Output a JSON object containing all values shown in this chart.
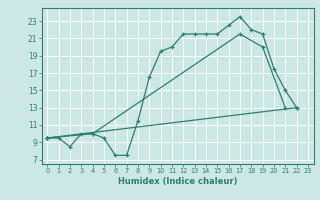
{
  "xlabel": "Humidex (Indice chaleur)",
  "bg_color": "#cce8e5",
  "grid_color": "#ffffff",
  "line_color": "#2e7d70",
  "xlim": [
    -0.5,
    23.5
  ],
  "ylim": [
    6.5,
    24.5
  ],
  "xticks": [
    0,
    1,
    2,
    3,
    4,
    5,
    6,
    7,
    8,
    9,
    10,
    11,
    12,
    13,
    14,
    15,
    16,
    17,
    18,
    19,
    20,
    21,
    22,
    23
  ],
  "yticks": [
    7,
    9,
    11,
    13,
    15,
    17,
    19,
    21,
    23
  ],
  "line1_x": [
    0,
    1,
    2,
    3,
    4,
    5,
    6,
    7,
    8,
    9,
    10,
    11,
    12,
    13,
    14,
    15,
    16,
    17,
    18,
    19,
    20,
    21,
    22
  ],
  "line1_y": [
    9.5,
    9.5,
    8.5,
    10,
    10,
    9.5,
    7.5,
    7.5,
    11.5,
    16.5,
    19.5,
    20,
    21.5,
    21.5,
    21.5,
    21.5,
    22.5,
    23.5,
    22,
    21.5,
    17.5,
    15,
    13
  ],
  "line2_x": [
    0,
    22
  ],
  "line2_y": [
    9.5,
    13
  ],
  "line3_x": [
    0,
    4,
    17,
    19,
    21
  ],
  "line3_y": [
    9.5,
    10,
    21.5,
    20,
    13
  ]
}
